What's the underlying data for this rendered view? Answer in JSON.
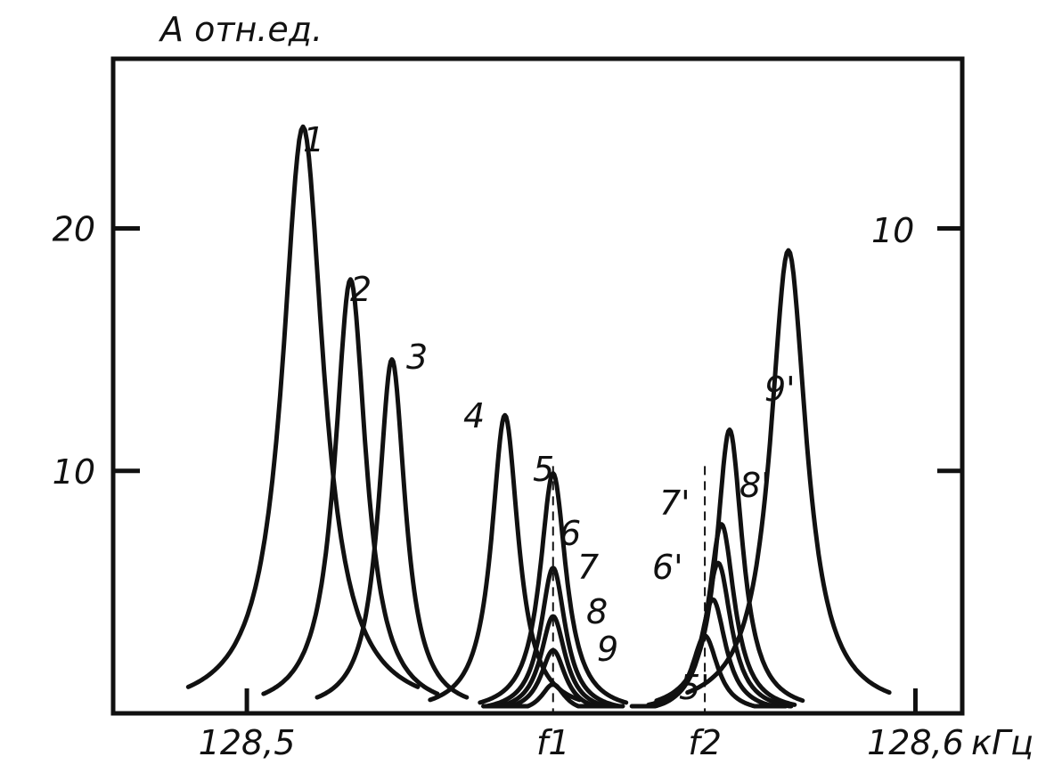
{
  "chart_data": {
    "type": "line",
    "ylabel": "А отн.ед.",
    "xlabel": "кГц",
    "xlim": [
      128.48,
      128.607
    ],
    "ylim": [
      0,
      27
    ],
    "x_ticks": [
      {
        "value": 128.5,
        "label": "128,5"
      },
      {
        "value": 128.6,
        "label": "128,6"
      }
    ],
    "x_markers": [
      {
        "value": 128.5458,
        "label": "f1"
      },
      {
        "value": 128.5685,
        "label": "f2"
      }
    ],
    "y_ticks": [
      {
        "value": 10,
        "label": "10"
      },
      {
        "value": 20,
        "label": "20"
      }
    ],
    "series": [
      {
        "name": "1",
        "peak_x": 128.5084,
        "peak_y": 24.2,
        "width": 0.0066
      },
      {
        "name": "2",
        "peak_x": 128.5155,
        "peak_y": 17.9,
        "width": 0.005
      },
      {
        "name": "3",
        "peak_x": 128.5217,
        "peak_y": 14.6,
        "width": 0.0043
      },
      {
        "name": "4",
        "peak_x": 128.5386,
        "peak_y": 12.3,
        "width": 0.0043,
        "comment_none": ""
      },
      {
        "name": "5",
        "peak_x": 128.5458,
        "peak_y": 9.9,
        "width": 0.0042
      },
      {
        "name": "6",
        "peak_x": 128.5458,
        "peak_y": 6.0,
        "width": 0.004
      },
      {
        "name": "7",
        "peak_x": 128.5458,
        "peak_y": 4.0,
        "width": 0.004
      },
      {
        "name": "8",
        "peak_x": 128.5458,
        "peak_y": 2.6,
        "width": 0.004
      },
      {
        "name": "9",
        "peak_x": 128.5458,
        "peak_y": 1.2,
        "width": 0.0038
      },
      {
        "name": "5'",
        "peak_x": 128.5685,
        "peak_y": 3.2,
        "width": 0.0042
      },
      {
        "name": "6'",
        "peak_x": 128.5697,
        "peak_y": 4.7,
        "width": 0.0042
      },
      {
        "name": "7'",
        "peak_x": 128.5705,
        "peak_y": 6.2,
        "width": 0.0042
      },
      {
        "name": "8'",
        "peak_x": 128.571,
        "peak_y": 7.8,
        "width": 0.0042
      },
      {
        "name": "9'",
        "peak_x": 128.5722,
        "peak_y": 11.7,
        "width": 0.0042
      },
      {
        "name": "10",
        "peak_x": 128.581,
        "peak_y": 19.1,
        "width": 0.0058
      }
    ]
  }
}
